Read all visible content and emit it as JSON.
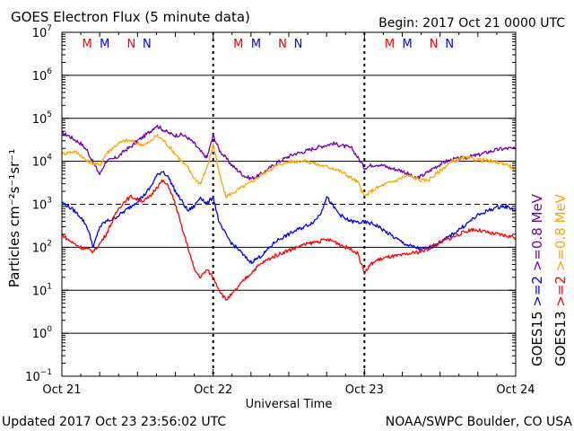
{
  "chart_data": {
    "type": "line",
    "title": "GOES Electron Flux (5 minute data)",
    "begin_label": "Begin: 2017 Oct 21 0000 UTC",
    "xlabel": "Universal Time",
    "ylabel": "Particles cm⁻²s⁻¹sr⁻¹",
    "y_scale": "log",
    "ylim": [
      0.1,
      10000000
    ],
    "y_ticks": [
      {
        "value": 10000000,
        "base": "10",
        "exp": "7"
      },
      {
        "value": 1000000,
        "base": "10",
        "exp": "6"
      },
      {
        "value": 100000,
        "base": "10",
        "exp": "5"
      },
      {
        "value": 10000,
        "base": "10",
        "exp": "4"
      },
      {
        "value": 1000,
        "base": "10",
        "exp": "3"
      },
      {
        "value": 100,
        "base": "10",
        "exp": "2"
      },
      {
        "value": 10,
        "base": "10",
        "exp": "1"
      },
      {
        "value": 1,
        "base": "10",
        "exp": "0"
      },
      {
        "value": 0.1,
        "base": "10",
        "exp": "−1"
      }
    ],
    "xlim_hours": [
      0,
      72
    ],
    "x_ticks": [
      {
        "hour": 0,
        "label": "Oct 21"
      },
      {
        "hour": 24,
        "label": "Oct 22"
      },
      {
        "hour": 48,
        "label": "Oct 23"
      },
      {
        "hour": 72,
        "label": "Oct 24"
      }
    ],
    "threshold_line": 1000,
    "markers": [
      {
        "hour": 4.0,
        "label": "M",
        "color": "#ff0000"
      },
      {
        "hour": 6.8,
        "label": "M",
        "color": "#0000ff"
      },
      {
        "hour": 11.0,
        "label": "N",
        "color": "#ff0000"
      },
      {
        "hour": 13.5,
        "label": "N",
        "color": "#0000ff"
      },
      {
        "hour": 28.0,
        "label": "M",
        "color": "#ff0000"
      },
      {
        "hour": 30.8,
        "label": "M",
        "color": "#0000ff"
      },
      {
        "hour": 35.0,
        "label": "N",
        "color": "#ff0000"
      },
      {
        "hour": 37.5,
        "label": "N",
        "color": "#0000ff"
      },
      {
        "hour": 52.0,
        "label": "M",
        "color": "#ff0000"
      },
      {
        "hour": 54.8,
        "label": "M",
        "color": "#0000ff"
      },
      {
        "hour": 59.0,
        "label": "N",
        "color": "#ff0000"
      },
      {
        "hour": 61.5,
        "label": "N",
        "color": "#0000ff"
      }
    ],
    "series": [
      {
        "name": ">=0.8 MeV",
        "satellite": "GOES15",
        "color": "#7000b0",
        "x": [
          0,
          1,
          2,
          3,
          4,
          5,
          6,
          7,
          8,
          9,
          10,
          11,
          12,
          13,
          14,
          15,
          16,
          17,
          18,
          19,
          20,
          21,
          22,
          23,
          24,
          25,
          26,
          27,
          28,
          29,
          30,
          31,
          32,
          33,
          34,
          35,
          36,
          37,
          38,
          39,
          40,
          41,
          42,
          43,
          44,
          45,
          46,
          47,
          48,
          49,
          50,
          51,
          52,
          53,
          54,
          55,
          56,
          57,
          58,
          59,
          60,
          61,
          62,
          63,
          64,
          65,
          66,
          67,
          68,
          69,
          70,
          71,
          72
        ],
        "values": [
          45000,
          40000,
          32000,
          26000,
          18000,
          9000,
          5000,
          10000,
          11000,
          13000,
          18000,
          22000,
          30000,
          38000,
          50000,
          68000,
          55000,
          45000,
          40000,
          42000,
          35000,
          26000,
          17000,
          12000,
          40000,
          18000,
          12000,
          8000,
          6000,
          4500,
          4000,
          4500,
          5500,
          7000,
          9000,
          11000,
          13000,
          15000,
          16000,
          18000,
          20000,
          22000,
          24000,
          26000,
          24000,
          22000,
          20000,
          12000,
          7000,
          8000,
          8500,
          8000,
          7000,
          6500,
          6000,
          5000,
          4000,
          4500,
          5500,
          7000,
          8500,
          10000,
          11000,
          11500,
          12000,
          13000,
          14000,
          15500,
          17000,
          18500,
          19500,
          20000,
          19000
        ]
      },
      {
        "name": ">=0.8 MeV",
        "satellite": "GOES13",
        "color": "#ffa500",
        "x": [
          0,
          1,
          2,
          3,
          4,
          5,
          6,
          7,
          8,
          9,
          10,
          11,
          12,
          13,
          14,
          15,
          16,
          17,
          18,
          19,
          20,
          21,
          22,
          23,
          24,
          25,
          26,
          27,
          28,
          29,
          30,
          31,
          32,
          33,
          34,
          35,
          36,
          37,
          38,
          39,
          40,
          41,
          42,
          43,
          44,
          45,
          46,
          47,
          48,
          49,
          50,
          51,
          52,
          53,
          54,
          55,
          56,
          57,
          58,
          59,
          60,
          61,
          62,
          63,
          64,
          65,
          66,
          67,
          68,
          69,
          70,
          71,
          72
        ],
        "values": [
          15000,
          16000,
          17000,
          14000,
          10000,
          9000,
          8000,
          15000,
          20000,
          26000,
          30000,
          30000,
          26000,
          24000,
          28000,
          40000,
          32000,
          22000,
          15000,
          10000,
          7000,
          4000,
          3000,
          7000,
          25000,
          5000,
          1500,
          1800,
          2200,
          2700,
          3200,
          4200,
          5200,
          6500,
          7800,
          8800,
          9800,
          10000,
          10500,
          9800,
          9000,
          8000,
          7500,
          7000,
          6000,
          5000,
          4000,
          3200,
          1500,
          2000,
          2400,
          2800,
          3200,
          3600,
          4200,
          4600,
          4100,
          3600,
          3600,
          4600,
          6000,
          8000,
          10000,
          11000,
          12000,
          11500,
          11000,
          10500,
          10000,
          9500,
          9000,
          8000,
          6000
        ]
      },
      {
        "name": ">=2 MeV",
        "satellite": "GOES15",
        "color": "#0000ff",
        "x": [
          0,
          1,
          2,
          3,
          4,
          5,
          6,
          7,
          8,
          9,
          10,
          11,
          12,
          13,
          14,
          15,
          16,
          17,
          18,
          19,
          20,
          21,
          22,
          23,
          24,
          25,
          26,
          27,
          28,
          29,
          30,
          31,
          32,
          33,
          34,
          35,
          36,
          37,
          38,
          39,
          40,
          41,
          42,
          43,
          44,
          45,
          46,
          47,
          48,
          49,
          50,
          51,
          52,
          53,
          54,
          55,
          56,
          57,
          58,
          59,
          60,
          61,
          62,
          63,
          64,
          65,
          66,
          67,
          68,
          69,
          70,
          71,
          72
        ],
        "values": [
          1100,
          900,
          700,
          500,
          300,
          100,
          300,
          400,
          450,
          550,
          700,
          900,
          1200,
          1600,
          2400,
          4500,
          6000,
          4000,
          2000,
          1200,
          700,
          900,
          1500,
          1000,
          1500,
          350,
          200,
          120,
          90,
          60,
          45,
          55,
          70,
          100,
          140,
          170,
          200,
          240,
          280,
          330,
          400,
          600,
          1500,
          900,
          600,
          450,
          400,
          380,
          380,
          360,
          320,
          250,
          200,
          160,
          130,
          110,
          100,
          90,
          95,
          110,
          130,
          160,
          200,
          260,
          330,
          430,
          550,
          650,
          750,
          850,
          900,
          850,
          700
        ]
      },
      {
        "name": ">=2 MeV",
        "satellite": "GOES13",
        "color": "#ff0000",
        "x": [
          0,
          1,
          2,
          3,
          4,
          5,
          6,
          7,
          8,
          9,
          10,
          11,
          12,
          13,
          14,
          15,
          16,
          17,
          18,
          19,
          20,
          21,
          22,
          23,
          24,
          25,
          26,
          27,
          28,
          29,
          30,
          31,
          32,
          33,
          34,
          35,
          36,
          37,
          38,
          39,
          40,
          41,
          42,
          43,
          44,
          45,
          46,
          47,
          48,
          49,
          50,
          51,
          52,
          53,
          54,
          55,
          56,
          57,
          58,
          59,
          60,
          61,
          62,
          63,
          64,
          65,
          66,
          67,
          68,
          69,
          70,
          71,
          72
        ],
        "values": [
          200,
          150,
          120,
          100,
          90,
          80,
          120,
          200,
          400,
          800,
          1200,
          1500,
          1300,
          1200,
          1500,
          2500,
          3500,
          2500,
          1000,
          300,
          100,
          30,
          20,
          30,
          20,
          10,
          6,
          8,
          12,
          18,
          25,
          35,
          45,
          55,
          65,
          75,
          85,
          95,
          110,
          120,
          130,
          140,
          150,
          140,
          120,
          100,
          90,
          70,
          25,
          40,
          50,
          55,
          60,
          62,
          65,
          70,
          75,
          80,
          90,
          110,
          130,
          150,
          170,
          200,
          230,
          260,
          250,
          230,
          210,
          200,
          190,
          180,
          170
        ]
      }
    ],
    "legend": [
      {
        "text": "GOES15",
        "color": "#000000"
      },
      {
        "text": ">=2",
        "color": "#0000ff"
      },
      {
        "text": ">=0.8 MeV",
        "color": "#7000b0"
      },
      {
        "text": "GOES13",
        "color": "#000000"
      },
      {
        "text": ">=2",
        "color": "#ff0000"
      },
      {
        "text": ">=0.8 MeV",
        "color": "#ffa500"
      }
    ],
    "footer_left": "Updated 2017 Oct 23 23:56:02 UTC",
    "footer_right": "NOAA/SWPC Boulder, CO USA"
  }
}
